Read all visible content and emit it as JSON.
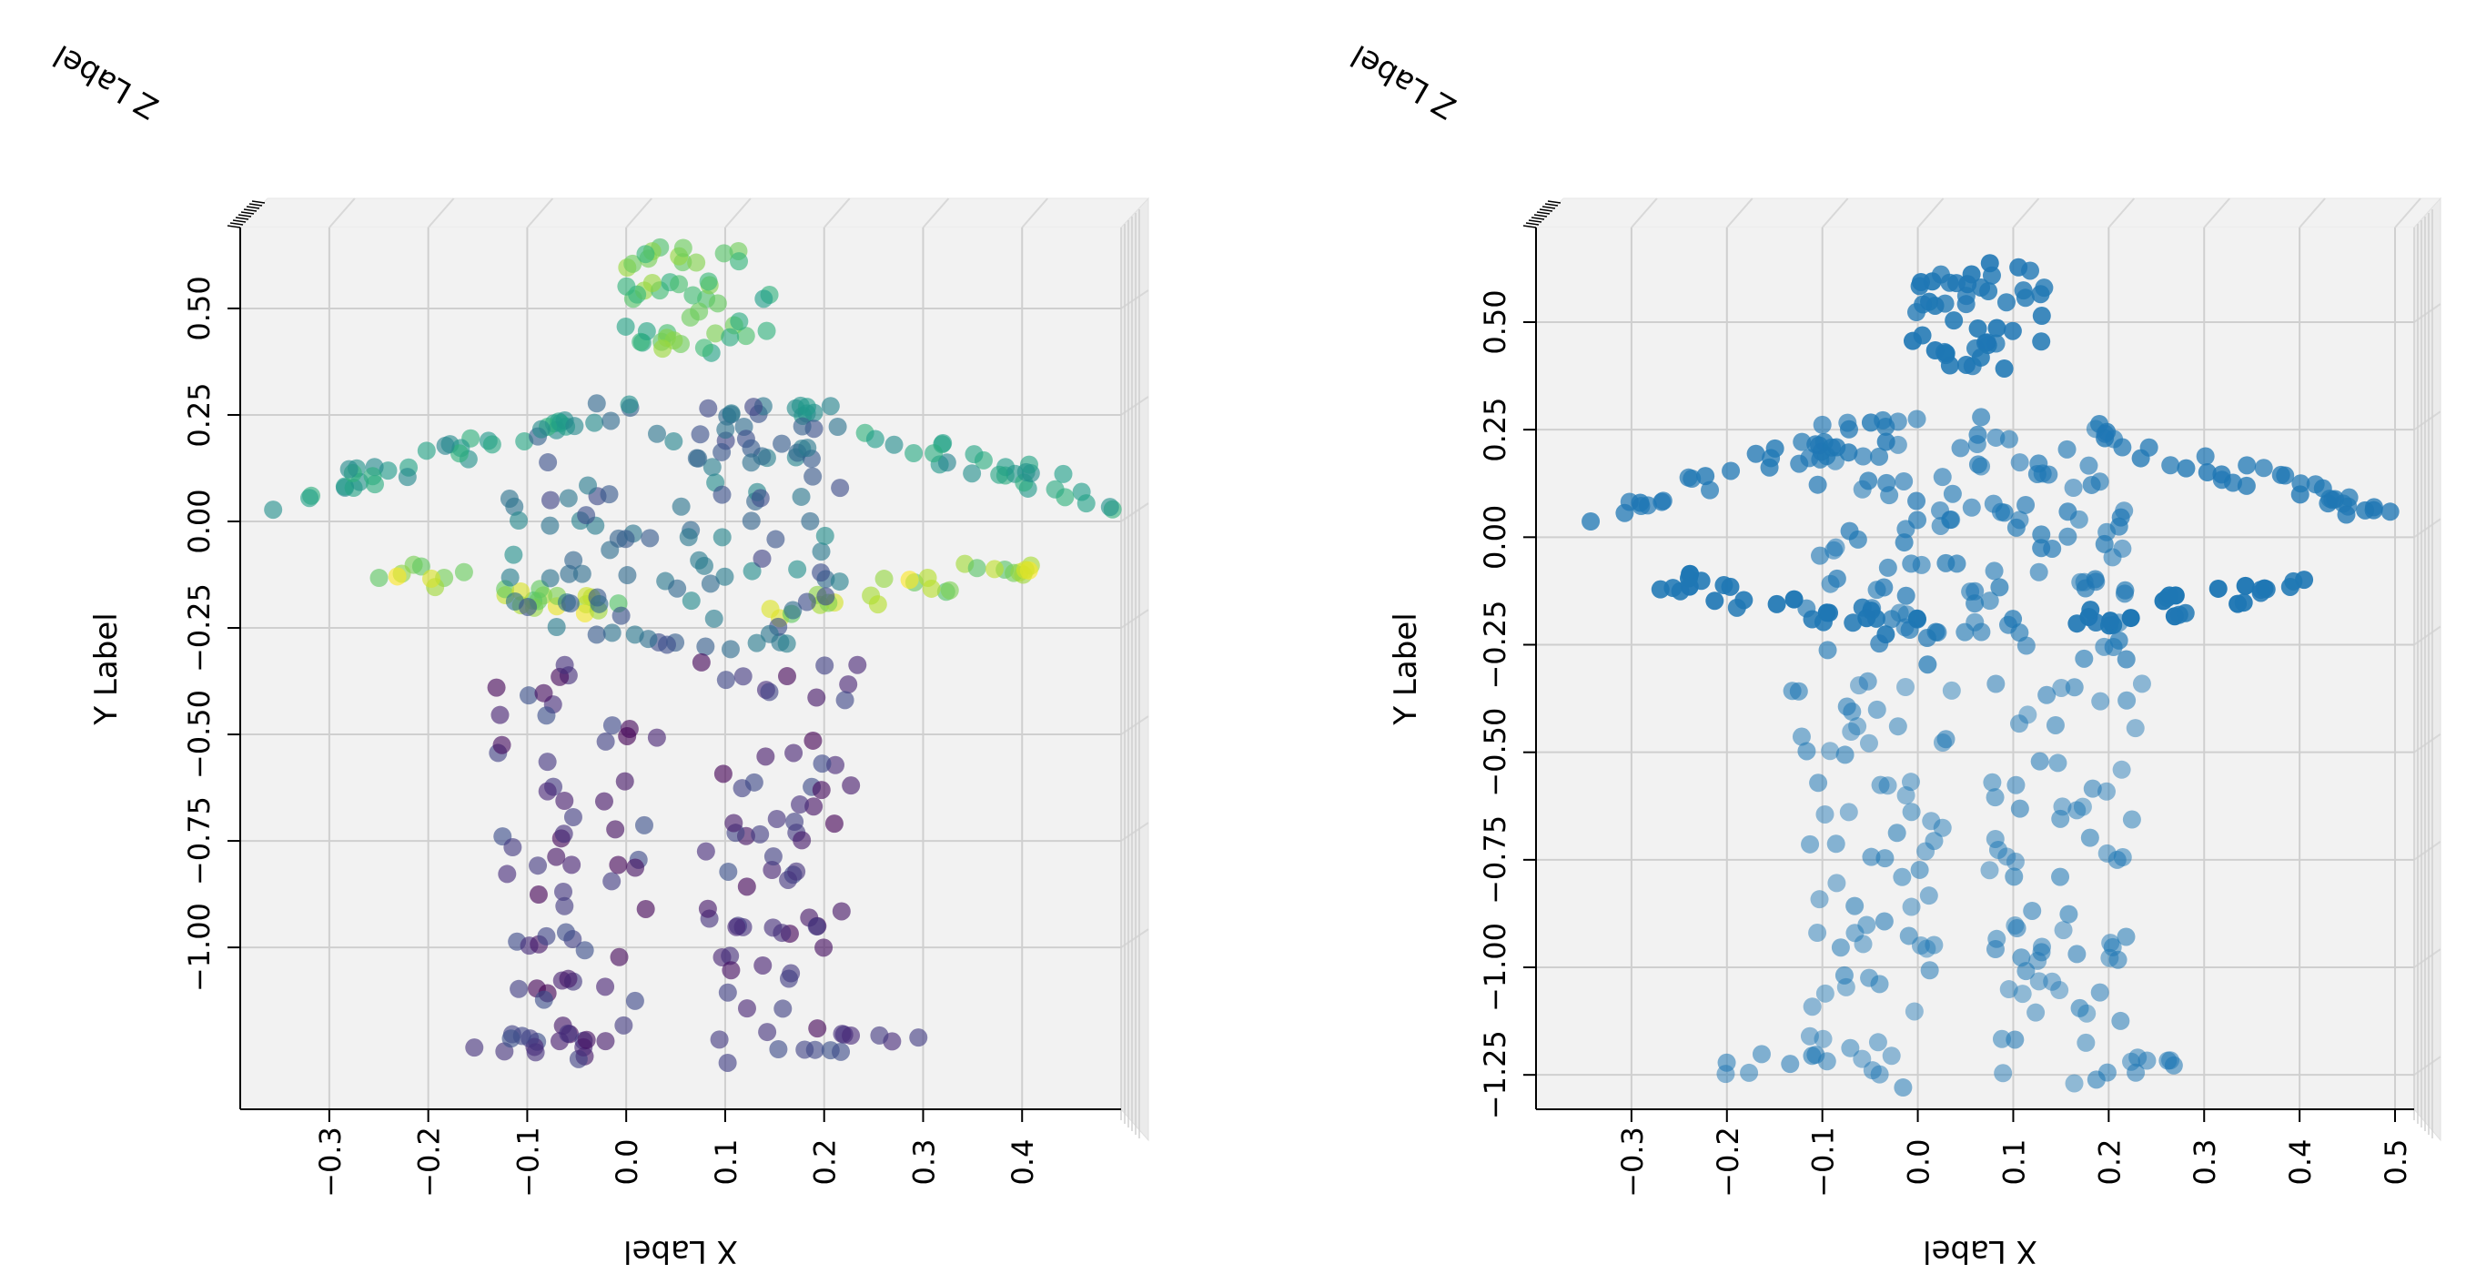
{
  "chart_data": [
    {
      "type": "scatter",
      "title": "",
      "xlabel": "X Label",
      "ylabel": "Y Label",
      "zlabel": "Z Label",
      "colormap": "viridis",
      "xlim": [
        -0.39,
        0.5
      ],
      "ylim": [
        -1.38,
        0.69
      ],
      "xticks": [
        -0.3,
        -0.2,
        -0.1,
        0.0,
        0.1,
        0.2,
        0.3,
        0.4
      ],
      "xtick_labels": [
        "−0.3",
        "−0.2",
        "−0.1",
        "0.0",
        "0.1",
        "0.2",
        "0.3",
        "0.4"
      ],
      "yticks": [
        -1.0,
        -0.75,
        -0.5,
        -0.25,
        0.0,
        0.25,
        0.5
      ],
      "ytick_labels": [
        "−1.00",
        "−0.75",
        "−0.50",
        "−0.25",
        "0.00",
        "0.25",
        "0.50"
      ],
      "grid": true,
      "legend": "none"
    },
    {
      "type": "scatter",
      "title": "",
      "xlabel": "X Label",
      "ylabel": "Y Label",
      "zlabel": "Z Label",
      "color": "#1f77b4",
      "xlim": [
        -0.4,
        0.52
      ],
      "ylim": [
        -1.33,
        0.72
      ],
      "xticks": [
        -0.3,
        -0.2,
        -0.1,
        0.0,
        0.1,
        0.2,
        0.3,
        0.4,
        0.5
      ],
      "xtick_labels": [
        "−0.3",
        "−0.2",
        "−0.1",
        "0.0",
        "0.1",
        "0.2",
        "0.3",
        "0.4",
        "0.5"
      ],
      "yticks": [
        -1.25,
        -1.0,
        -0.75,
        -0.5,
        -0.25,
        0.0,
        0.25,
        0.5
      ],
      "ytick_labels": [
        "−1.25",
        "−1.00",
        "−0.75",
        "−0.50",
        "−0.25",
        "0.00",
        "0.25",
        "0.50"
      ],
      "grid": true,
      "legend": "none"
    }
  ]
}
